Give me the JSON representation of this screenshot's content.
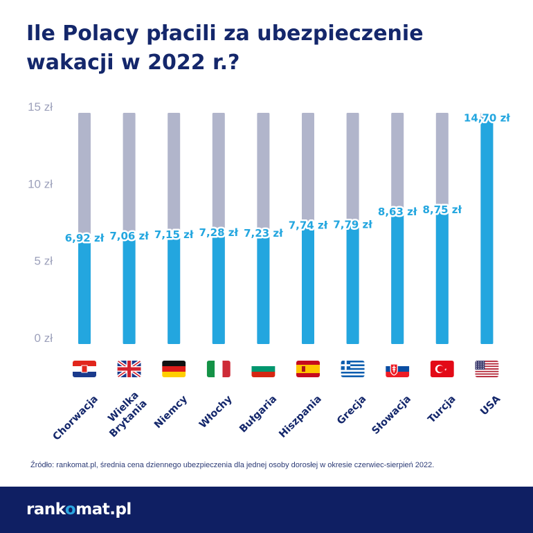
{
  "title_line1": "Ile Polacy płacili za ubezpieczenie",
  "title_line2": "wakacji w 2022 r.?",
  "source": "Źródło: rankomat.pl, średnia cena dziennego ubezpieczenia dla jednej osoby dorosłej w okresie czerwiec-sierpień 2022.",
  "logo": {
    "pre": "rank",
    "accent": "o",
    "post": "mat.pl"
  },
  "colors": {
    "title": "#14276b",
    "bar": "#23a6df",
    "track": "#b1b5cb",
    "axis_text": "#9da1bb",
    "footer": "#0f1f63"
  },
  "chart_data": {
    "type": "bar",
    "title": "Ile Polacy płacili za ubezpieczenie wakacji w 2022 r.?",
    "xlabel": "",
    "ylabel": "",
    "ylim": [
      0,
      15
    ],
    "yticks": [
      "0 zł",
      "5 zł",
      "10 zł",
      "15 zł"
    ],
    "ytick_values": [
      0,
      5,
      10,
      15
    ],
    "grid": false,
    "categories": [
      "Chorwacja",
      "Wielka Brytania",
      "Niemcy",
      "Włochy",
      "Bułgaria",
      "Hiszpania",
      "Grecja",
      "Słowacja",
      "Turcja",
      "USA"
    ],
    "values": [
      6.92,
      7.06,
      7.15,
      7.28,
      7.23,
      7.74,
      7.79,
      8.63,
      8.75,
      14.7
    ],
    "value_labels": [
      "6,92 zł",
      "7,06 zł",
      "7,15 zł",
      "7,28 zł",
      "7,23 zł",
      "7,74 zł",
      "7,79 zł",
      "8,63 zł",
      "8,75 zł",
      "14,70 zł"
    ],
    "flags": [
      "croatia-flag",
      "uk-flag",
      "germany-flag",
      "italy-flag",
      "bulgaria-flag",
      "spain-flag",
      "greece-flag",
      "slovakia-flag",
      "turkey-flag",
      "usa-flag"
    ]
  }
}
